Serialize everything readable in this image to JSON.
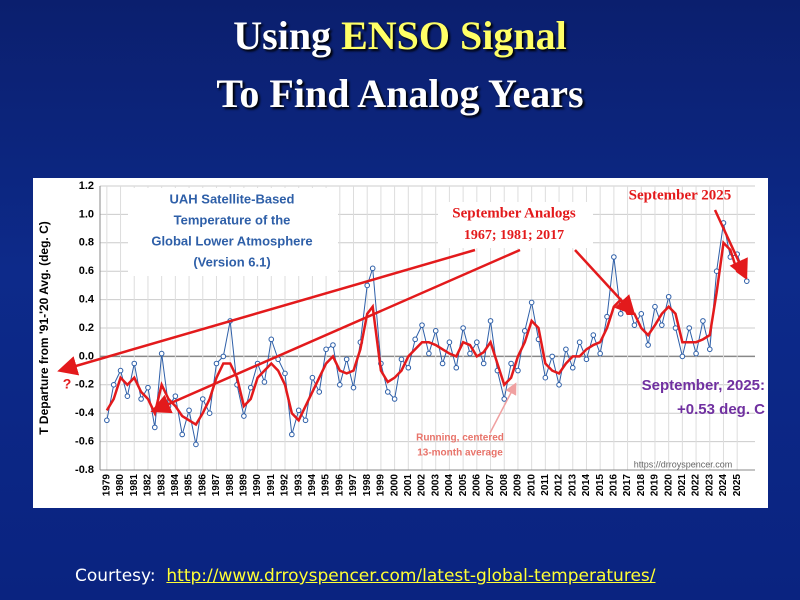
{
  "slide": {
    "title": {
      "prefix": "Using",
      "highlight": "ENSO Signal",
      "line2": "To Find Analog Years"
    },
    "courtesy": {
      "label": "Courtesy:",
      "link": "http://www.drroyspencer.com/latest-global-temperatures/"
    }
  },
  "chart_data": {
    "type": "line",
    "title_lines": [
      "UAH Satellite-Based",
      "Temperature of the",
      "Global Lower Atmosphere",
      "(Version 6.1)"
    ],
    "ylabel": "T Departure from '91-'20 Avg. (deg. C)",
    "annotations": [
      "September Analogs",
      "1967; 1981; 2017",
      "September 2025",
      "September, 2025:",
      "+0.53 deg. C",
      "Running, centered",
      "13-month average",
      "https://drroyspencer.com",
      "?"
    ],
    "xlim": [
      1978.5,
      2026.3
    ],
    "xticks": [
      1979,
      1980,
      1981,
      1982,
      1983,
      1984,
      1985,
      1986,
      1987,
      1988,
      1989,
      1990,
      1991,
      1992,
      1993,
      1994,
      1995,
      1996,
      1997,
      1998,
      1999,
      2000,
      2001,
      2002,
      2003,
      2004,
      2005,
      2006,
      2007,
      2008,
      2009,
      2010,
      2011,
      2012,
      2013,
      2014,
      2015,
      2016,
      2017,
      2018,
      2019,
      2020,
      2021,
      2022,
      2023,
      2024,
      2025
    ],
    "ylim": [
      -0.8,
      1.2
    ],
    "yticks": [
      1.2,
      {
        "value": 1,
        "label": "1.0"
      },
      0.8,
      0.6,
      0.4,
      0.2,
      {
        "value": 0,
        "label": "0.0"
      },
      -0.2,
      -0.4,
      -0.6,
      -0.8
    ],
    "grid": true,
    "x": [
      1979,
      1979.5,
      1980,
      1980.5,
      1981,
      1981.5,
      1982,
      1982.5,
      1983,
      1983.5,
      1984,
      1984.5,
      1985,
      1985.5,
      1986,
      1986.5,
      1987,
      1987.5,
      1988,
      1988.5,
      1989,
      1989.5,
      1990,
      1990.5,
      1991,
      1991.5,
      1992,
      1992.5,
      1993,
      1993.5,
      1994,
      1994.5,
      1995,
      1995.5,
      1996,
      1996.5,
      1997,
      1997.5,
      1998,
      1998.4,
      1999,
      1999.5,
      2000,
      2000.5,
      2001,
      2001.5,
      2002,
      2002.5,
      2003,
      2003.5,
      2004,
      2004.5,
      2005,
      2005.5,
      2006,
      2006.5,
      2007,
      2007.5,
      2008,
      2008.5,
      2009,
      2009.5,
      2010,
      2010.5,
      2011,
      2011.5,
      2012,
      2012.5,
      2013,
      2013.5,
      2014,
      2014.5,
      2015,
      2015.5,
      2016,
      2016.5,
      2017,
      2017.5,
      2018,
      2018.5,
      2019,
      2019.5,
      2020,
      2020.5,
      2021,
      2021.5,
      2022,
      2022.5,
      2023,
      2023.5,
      2024,
      2024.5,
      2025,
      2025.7
    ],
    "series": [
      {
        "color": "#2e5fa8",
        "values": [
          -0.45,
          -0.2,
          -0.1,
          -0.28,
          -0.05,
          -0.3,
          -0.22,
          -0.5,
          0.02,
          -0.35,
          -0.28,
          -0.55,
          -0.38,
          -0.62,
          -0.3,
          -0.4,
          -0.05,
          0.0,
          0.25,
          -0.2,
          -0.42,
          -0.22,
          -0.05,
          -0.18,
          0.12,
          -0.02,
          -0.12,
          -0.55,
          -0.38,
          -0.45,
          -0.15,
          -0.25,
          0.05,
          0.08,
          -0.2,
          -0.02,
          -0.22,
          0.1,
          0.5,
          0.62,
          -0.05,
          -0.25,
          -0.3,
          -0.02,
          -0.08,
          0.12,
          0.22,
          0.02,
          0.18,
          -0.05,
          0.1,
          -0.08,
          0.2,
          0.02,
          0.1,
          -0.05,
          0.25,
          -0.1,
          -0.3,
          -0.05,
          -0.1,
          0.18,
          0.38,
          0.12,
          -0.15,
          0.0,
          -0.2,
          0.05,
          -0.08,
          0.1,
          -0.02,
          0.15,
          0.02,
          0.28,
          0.7,
          0.3,
          0.4,
          0.22,
          0.3,
          0.08,
          0.35,
          0.22,
          0.42,
          0.2,
          0.0,
          0.2,
          0.02,
          0.25,
          0.05,
          0.6,
          0.94,
          0.7,
          0.72,
          0.53
        ]
      },
      {
        "color": "#e31a1c",
        "values": [
          -0.38,
          -0.3,
          -0.15,
          -0.2,
          -0.15,
          -0.25,
          -0.3,
          -0.4,
          -0.2,
          -0.3,
          -0.35,
          -0.42,
          -0.45,
          -0.48,
          -0.4,
          -0.3,
          -0.15,
          -0.05,
          -0.05,
          -0.15,
          -0.35,
          -0.3,
          -0.15,
          -0.1,
          -0.05,
          -0.1,
          -0.2,
          -0.4,
          -0.45,
          -0.35,
          -0.25,
          -0.15,
          -0.05,
          0.0,
          -0.1,
          -0.12,
          -0.1,
          0.05,
          0.3,
          0.35,
          -0.1,
          -0.18,
          -0.15,
          -0.1,
          0.0,
          0.05,
          0.1,
          0.1,
          0.08,
          0.05,
          0.02,
          0.0,
          0.1,
          0.08,
          0.0,
          0.03,
          0.1,
          -0.05,
          -0.2,
          -0.15,
          0.0,
          0.1,
          0.25,
          0.2,
          -0.05,
          -0.1,
          -0.12,
          -0.05,
          0.0,
          0.0,
          0.05,
          0.08,
          0.1,
          0.2,
          0.35,
          0.4,
          0.3,
          0.3,
          0.2,
          0.15,
          0.22,
          0.3,
          0.35,
          0.3,
          0.1,
          0.1,
          0.1,
          0.12,
          0.15,
          0.45,
          0.8,
          0.75,
          0.6,
          0.55
        ]
      }
    ]
  }
}
